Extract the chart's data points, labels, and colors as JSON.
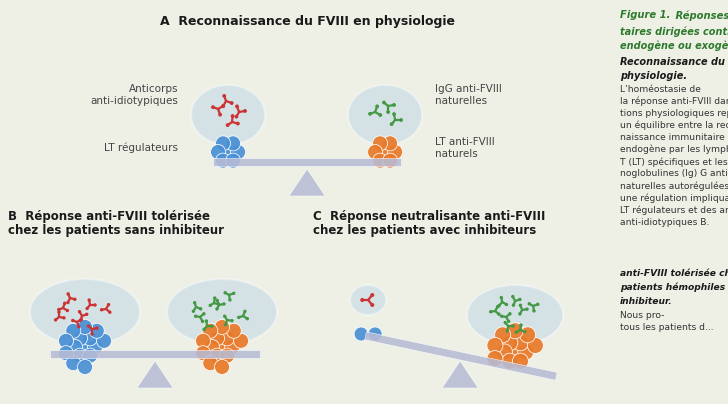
{
  "bg_color": "#eef0e6",
  "scale_color": "#b8bcd5",
  "triangle_color": "#b8bcd5",
  "blue_cell_color": "#4a90d4",
  "orange_cell_color": "#e87a2a",
  "bubble_color": "#aacce8",
  "red_ab_color": "#cc3333",
  "green_ab_color": "#449944",
  "text_dark": "#1a1a1a",
  "text_mid": "#444444",
  "panel_a_title": "A  Reconnaissance du FVIII en physiologie",
  "panel_b_title": "B  Réponse anti-FVIII tolérisée",
  "panel_b_sub": "chez les patients sans inhibiteur",
  "panel_c_title": "C  Réponse neutralisante anti-FVIII",
  "panel_c_sub": "chez les patients avec inhibiteurs",
  "lbl_anticorps": "Anticorps\nanti-idiotypiques",
  "lbl_lt_reg": "LT régulateurs",
  "lbl_igg": "IgG anti-FVIII\nnaturelles",
  "lbl_lt_anti": "LT anti-FVIII\nnaturels",
  "right_fig_label": "Figure 1.",
  "right_line1": " Réponses immuni-",
  "right_line2": "taires dirigées contre le FVIII",
  "right_line3": "endogène ou exogène.",
  "right_line4": "Reconnaissance du FVIII en",
  "right_line5": "physiologie.",
  "right_body": "L’homéostasie de\nla réponse anti-FVIII dans condi-\ntions physiologiques repose sur\nun équilibre entre la recon-\nnaissance immunitaire du FVIII\nendogène par les lymphocytes\nT (LT) spécifiques et les immu-\nnoglobulines (Ig) G anti-FVIII\nnaturelles autorégulées, avec\nune régulation impliquant des\nLT régulateurs et des anticorps\nanti-idiotypiques B.",
  "right_bold1": "anti-FVIII tolérisée chez les",
  "right_bold2": "patients hémophiles sans",
  "right_bold3": "inhibiteur.",
  "right_end": "Nous pro-\ntous les patients d..."
}
